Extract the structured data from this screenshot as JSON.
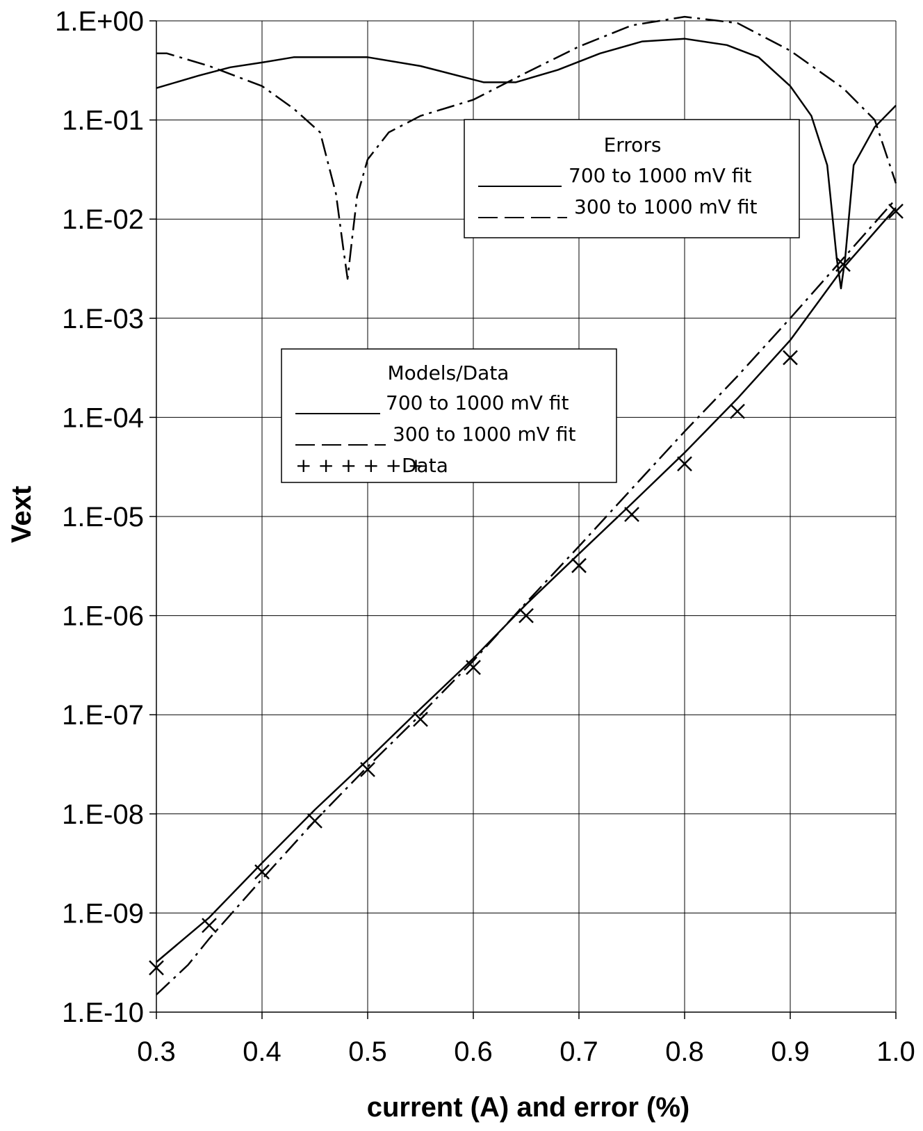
{
  "chart_data": {
    "type": "line",
    "xlabel": "current (A) and error (%)",
    "ylabel": "Vext",
    "yscale": "log",
    "xlim": [
      0.3,
      1.0
    ],
    "ylim": [
      1e-10,
      1
    ],
    "grid": true,
    "x_ticks": [
      "0.3",
      "0.4",
      "0.5",
      "0.6",
      "0.7",
      "0.8",
      "0.9",
      "1.0"
    ],
    "y_ticks": [
      "1.E+00",
      "1.E-01",
      "1.E-02",
      "1.E-03",
      "1.E-04",
      "1.E-05",
      "1.E-06",
      "1.E-07",
      "1.E-08",
      "1.E-09",
      "1.E-10"
    ],
    "legends": [
      {
        "title": "Errors",
        "placement": "top-right",
        "entries": [
          {
            "label": "700 to 1000 mV fit",
            "style": "solid"
          },
          {
            "label": "300 to 1000 mV fit",
            "style": "dash"
          }
        ]
      },
      {
        "title": "Models/Data",
        "placement": "center-left",
        "entries": [
          {
            "label": "700 to 1000 mV fit",
            "style": "solid"
          },
          {
            "label": "300 to 1000 mV fit",
            "style": "dash"
          },
          {
            "label": "Data",
            "style": "marker",
            "marker_text": "+ + + + + +"
          }
        ]
      }
    ],
    "series": [
      {
        "group": "Models/Data",
        "label": "700 to 1000 mV fit",
        "style": "solid",
        "points": [
          [
            0.3,
            3.2e-10
          ],
          [
            0.35,
            9e-10
          ],
          [
            0.4,
            3.2e-09
          ],
          [
            0.45,
            1.1e-08
          ],
          [
            0.5,
            3.5e-08
          ],
          [
            0.55,
            1.15e-07
          ],
          [
            0.6,
            3.7e-07
          ],
          [
            0.65,
            1.3e-06
          ],
          [
            0.7,
            4.2e-06
          ],
          [
            0.75,
            1.35e-05
          ],
          [
            0.8,
            4.4e-05
          ],
          [
            0.85,
            0.000155
          ],
          [
            0.9,
            0.0006
          ],
          [
            0.95,
            0.0032
          ],
          [
            1.0,
            0.013
          ]
        ]
      },
      {
        "group": "Models/Data",
        "label": "300 to 1000 mV fit",
        "style": "dashdot",
        "points": [
          [
            0.3,
            1.5e-10
          ],
          [
            0.33,
            3e-10
          ],
          [
            0.35,
            5.5e-10
          ],
          [
            0.4,
            2.2e-09
          ],
          [
            0.45,
            8.5e-09
          ],
          [
            0.5,
            3e-08
          ],
          [
            0.55,
            1e-07
          ],
          [
            0.6,
            3.5e-07
          ],
          [
            0.65,
            1.35e-06
          ],
          [
            0.7,
            5e-06
          ],
          [
            0.75,
            1.9e-05
          ],
          [
            0.8,
            7.2e-05
          ],
          [
            0.85,
            0.00026
          ],
          [
            0.9,
            0.001
          ],
          [
            0.95,
            0.004
          ],
          [
            1.0,
            0.016
          ]
        ]
      },
      {
        "group": "Models/Data",
        "label": "Data",
        "style": "marker",
        "points": [
          [
            0.3,
            2.8e-10
          ],
          [
            0.35,
            7.5e-10
          ],
          [
            0.4,
            2.6e-09
          ],
          [
            0.45,
            8.5e-09
          ],
          [
            0.5,
            2.8e-08
          ],
          [
            0.55,
            9e-08
          ],
          [
            0.6,
            3e-07
          ],
          [
            0.65,
            1e-06
          ],
          [
            0.7,
            3.2e-06
          ],
          [
            0.75,
            1.05e-05
          ],
          [
            0.8,
            3.4e-05
          ],
          [
            0.85,
            0.000115
          ],
          [
            0.9,
            0.0004
          ],
          [
            0.95,
            0.0035
          ],
          [
            1.0,
            0.012
          ]
        ]
      },
      {
        "group": "Errors",
        "label": "700 to 1000 mV fit",
        "style": "solid",
        "points": [
          [
            0.3,
            0.21
          ],
          [
            0.34,
            0.28
          ],
          [
            0.37,
            0.34
          ],
          [
            0.4,
            0.38
          ],
          [
            0.43,
            0.43
          ],
          [
            0.5,
            0.43
          ],
          [
            0.55,
            0.35
          ],
          [
            0.61,
            0.24
          ],
          [
            0.64,
            0.24
          ],
          [
            0.68,
            0.32
          ],
          [
            0.72,
            0.47
          ],
          [
            0.76,
            0.62
          ],
          [
            0.8,
            0.66
          ],
          [
            0.84,
            0.57
          ],
          [
            0.87,
            0.43
          ],
          [
            0.9,
            0.22
          ],
          [
            0.92,
            0.11
          ],
          [
            0.935,
            0.035
          ],
          [
            0.944,
            0.004
          ],
          [
            0.948,
            0.002
          ],
          [
            0.952,
            0.004
          ],
          [
            0.96,
            0.035
          ],
          [
            0.98,
            0.085
          ],
          [
            1.0,
            0.14
          ]
        ]
      },
      {
        "group": "Errors",
        "label": "300 to 1000 mV fit",
        "style": "dashdot",
        "points": [
          [
            0.3,
            0.47
          ],
          [
            0.31,
            0.47
          ],
          [
            0.35,
            0.35
          ],
          [
            0.4,
            0.22
          ],
          [
            0.43,
            0.13
          ],
          [
            0.455,
            0.075
          ],
          [
            0.47,
            0.018
          ],
          [
            0.477,
            0.005
          ],
          [
            0.481,
            0.0025
          ],
          [
            0.485,
            0.006
          ],
          [
            0.49,
            0.017
          ],
          [
            0.5,
            0.04
          ],
          [
            0.52,
            0.075
          ],
          [
            0.55,
            0.11
          ],
          [
            0.6,
            0.16
          ],
          [
            0.65,
            0.3
          ],
          [
            0.7,
            0.55
          ],
          [
            0.75,
            0.9
          ],
          [
            0.8,
            1.1
          ],
          [
            0.85,
            0.95
          ],
          [
            0.9,
            0.5
          ],
          [
            0.95,
            0.21
          ],
          [
            0.98,
            0.1
          ],
          [
            1.0,
            0.023
          ]
        ]
      }
    ]
  }
}
